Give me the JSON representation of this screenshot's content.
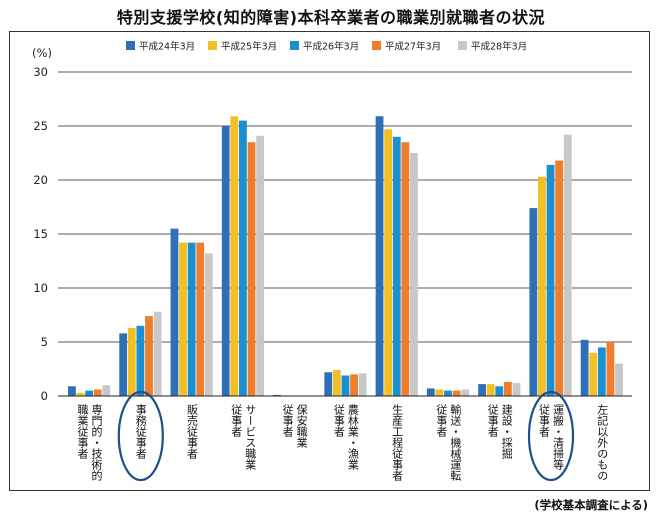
{
  "title": "特別支援学校(知的障害)本科卒業者の職業別就職者の状況",
  "source": "(学校基本調査による)",
  "chart_data": {
    "type": "bar",
    "ylabel": "(%)",
    "ylim": [
      0,
      30
    ],
    "yticks": [
      "0",
      "5",
      "10",
      "15",
      "20",
      "25",
      "30"
    ],
    "grid": true,
    "legend_position": "top",
    "categories": [
      [
        "専門的・技術的",
        "職業従事者"
      ],
      [
        "事務従事者"
      ],
      [
        "販売従事者"
      ],
      [
        "サービス職業",
        "従事者"
      ],
      [
        "保安職業",
        "従事者"
      ],
      [
        "農林業・漁業",
        "従事者"
      ],
      [
        "生産工程従事者"
      ],
      [
        "輸送・機械運転",
        "従事者"
      ],
      [
        "建設・採掘",
        "従事者"
      ],
      [
        "運搬・清掃等",
        "従事者"
      ],
      [
        "左記以外のもの"
      ]
    ],
    "highlighted_categories": [
      1,
      9
    ],
    "series": [
      {
        "name": "平成24年3月",
        "color": "#2e6fb8",
        "values": [
          0.9,
          5.8,
          15.5,
          25.0,
          0.1,
          2.2,
          25.9,
          0.7,
          1.1,
          17.4,
          5.2
        ]
      },
      {
        "name": "平成25年3月",
        "color": "#f2bf24",
        "values": [
          0.3,
          6.3,
          14.2,
          25.9,
          0.05,
          2.4,
          24.7,
          0.6,
          1.1,
          20.3,
          4.0
        ]
      },
      {
        "name": "平成26年3月",
        "color": "#1b8fd0",
        "values": [
          0.5,
          6.5,
          14.2,
          25.5,
          0.05,
          1.9,
          24.0,
          0.5,
          0.9,
          21.4,
          4.5
        ]
      },
      {
        "name": "平成27年3月",
        "color": "#ee7d2c",
        "values": [
          0.6,
          7.4,
          14.2,
          23.5,
          0.05,
          2.0,
          23.5,
          0.5,
          1.3,
          21.8,
          5.0
        ]
      },
      {
        "name": "平成28年3月",
        "color": "#c8c8c8",
        "values": [
          1.0,
          7.8,
          13.2,
          24.1,
          0.05,
          2.1,
          22.5,
          0.6,
          1.2,
          24.2,
          3.0
        ]
      }
    ]
  }
}
